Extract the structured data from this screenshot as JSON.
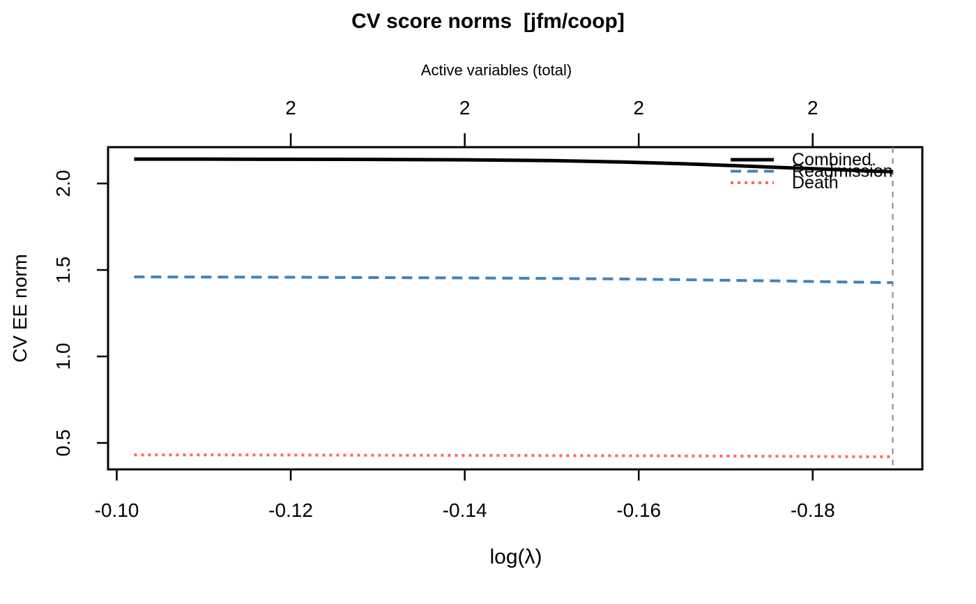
{
  "chart_data": {
    "type": "line",
    "title": "CV score norms  [jfm/coop]",
    "top_axis_label": "Active variables (total)",
    "xlabel": "log(λ)",
    "ylabel": "CV EE norm",
    "background": "#ffffff",
    "grid": false,
    "xlim": [
      -0.099,
      -0.1926
    ],
    "ylim": [
      0.347,
      2.21
    ],
    "x_ticks": [
      -0.1,
      -0.12,
      -0.14,
      -0.16,
      -0.18
    ],
    "x_tick_labels": [
      "-0.10",
      "-0.12",
      "-0.14",
      "-0.16",
      "-0.18"
    ],
    "y_ticks": [
      0.5,
      1.0,
      1.5,
      2.0
    ],
    "y_tick_labels": [
      "0.5",
      "1.0",
      "1.5",
      "2.0"
    ],
    "top_axis_ticks": [
      {
        "x": -0.12,
        "label": "2"
      },
      {
        "x": -0.14,
        "label": "2"
      },
      {
        "x": -0.16,
        "label": "2"
      },
      {
        "x": -0.18,
        "label": "2"
      }
    ],
    "vline": {
      "x": -0.1892,
      "style": "dashed",
      "color": "#888888"
    },
    "series": [
      {
        "name": "Combined",
        "color": "#000000",
        "dash": "solid",
        "width": 5,
        "x": [
          -0.102,
          -0.11,
          -0.12,
          -0.13,
          -0.14,
          -0.15,
          -0.158,
          -0.165,
          -0.171,
          -0.177,
          -0.183,
          -0.186,
          -0.1892
        ],
        "y": [
          2.141,
          2.141,
          2.14,
          2.139,
          2.137,
          2.132,
          2.124,
          2.114,
          2.103,
          2.091,
          2.08,
          2.073,
          2.068
        ]
      },
      {
        "name": "Readmission",
        "color": "#4682B4",
        "dash": "dashed",
        "width": 4,
        "x": [
          -0.102,
          -0.11,
          -0.12,
          -0.13,
          -0.14,
          -0.15,
          -0.158,
          -0.165,
          -0.171,
          -0.177,
          -0.183,
          -0.186,
          -0.1892
        ],
        "y": [
          1.46,
          1.459,
          1.458,
          1.456,
          1.454,
          1.451,
          1.448,
          1.444,
          1.44,
          1.436,
          1.431,
          1.429,
          1.427
        ]
      },
      {
        "name": "Death",
        "color": "#FB6B55",
        "dash": "dotted",
        "width": 4,
        "x": [
          -0.102,
          -0.11,
          -0.12,
          -0.13,
          -0.14,
          -0.15,
          -0.158,
          -0.165,
          -0.171,
          -0.177,
          -0.183,
          -0.186,
          -0.1892
        ],
        "y": [
          0.431,
          0.431,
          0.43,
          0.429,
          0.428,
          0.427,
          0.426,
          0.425,
          0.424,
          0.423,
          0.421,
          0.42,
          0.42
        ]
      }
    ],
    "legend": {
      "position": "topright",
      "entries": [
        "Combined.",
        "Readmission",
        "Death"
      ]
    }
  }
}
